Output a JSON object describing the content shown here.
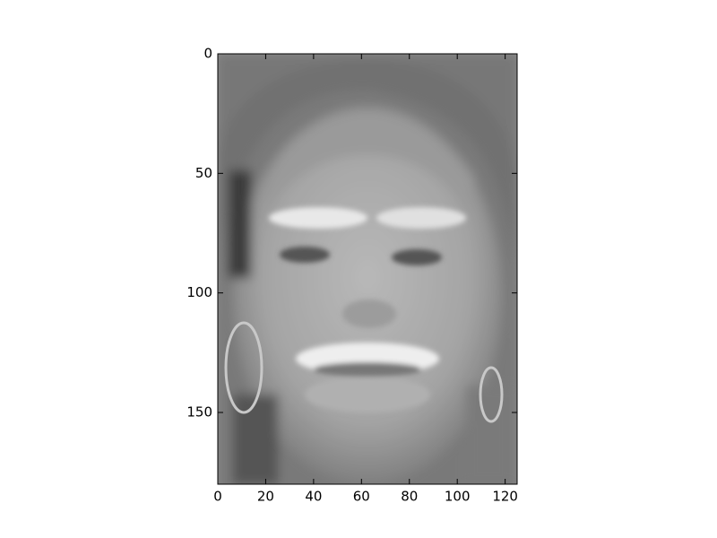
{
  "chart_data": {
    "type": "image",
    "xlim": [
      0,
      125
    ],
    "ylim": [
      180,
      0
    ],
    "xticks": [
      0,
      20,
      40,
      60,
      80,
      100,
      120
    ],
    "yticks": [
      0,
      50,
      100,
      150
    ]
  }
}
